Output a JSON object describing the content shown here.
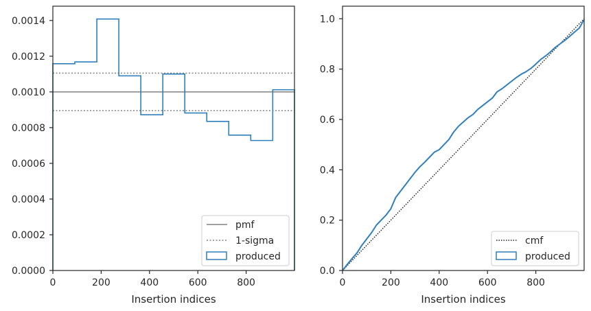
{
  "chart_data": [
    {
      "type": "step",
      "xlabel": "Insertion indices",
      "ylabel": "",
      "xlim": [
        0,
        1000
      ],
      "ylim": [
        0,
        0.00148
      ],
      "xticks": [
        0,
        200,
        400,
        600,
        800
      ],
      "xtick_labels": [
        "0",
        "200",
        "400",
        "600",
        "800"
      ],
      "yticks": [
        0,
        0.0002,
        0.0004,
        0.0006,
        0.0008,
        0.001,
        0.0012,
        0.0014
      ],
      "ytick_labels": [
        "0.0000",
        "0.0002",
        "0.0004",
        "0.0006",
        "0.0008",
        "0.0010",
        "0.0012",
        "0.0014"
      ],
      "pmf": 0.001,
      "sigma_band": [
        0.000895,
        0.001105
      ],
      "produced_bins": {
        "edges": [
          0,
          91,
          182,
          273,
          364,
          455,
          546,
          637,
          728,
          819,
          910,
          1000
        ],
        "values": [
          0.001158,
          0.001168,
          0.001408,
          0.00109,
          0.000872,
          0.0011,
          0.000882,
          0.000835,
          0.000758,
          0.000728,
          0.001012
        ]
      },
      "legend": {
        "position": "lower right",
        "entries": [
          "pmf",
          "1-sigma",
          "produced"
        ]
      },
      "colors": {
        "produced": "#2f7fbc",
        "pmf": "#808080",
        "sigma": "#808080"
      }
    },
    {
      "type": "line",
      "xlabel": "Insertion indices",
      "ylabel": "",
      "xlim": [
        0,
        1000
      ],
      "ylim": [
        0,
        1.05
      ],
      "xticks": [
        0,
        200,
        400,
        600,
        800
      ],
      "xtick_labels": [
        "0",
        "200",
        "400",
        "600",
        "800"
      ],
      "yticks": [
        0,
        0.2,
        0.4,
        0.6,
        0.8,
        1.0
      ],
      "ytick_labels": [
        "0.0",
        "0.2",
        "0.4",
        "0.6",
        "0.8",
        "1.0"
      ],
      "cmf": {
        "x": [
          0,
          1000
        ],
        "y": [
          0,
          1
        ]
      },
      "produced_cdf": {
        "x": [
          0,
          20,
          40,
          60,
          80,
          100,
          120,
          140,
          160,
          180,
          200,
          210,
          220,
          240,
          260,
          280,
          300,
          320,
          340,
          360,
          380,
          400,
          420,
          440,
          460,
          480,
          500,
          520,
          540,
          560,
          580,
          600,
          620,
          640,
          660,
          680,
          700,
          720,
          740,
          760,
          780,
          800,
          820,
          840,
          860,
          880,
          900,
          920,
          940,
          960,
          980,
          1000
        ],
        "y": [
          0,
          0.025,
          0.048,
          0.07,
          0.1,
          0.125,
          0.15,
          0.18,
          0.2,
          0.22,
          0.245,
          0.268,
          0.29,
          0.315,
          0.34,
          0.365,
          0.39,
          0.412,
          0.43,
          0.45,
          0.47,
          0.48,
          0.5,
          0.52,
          0.55,
          0.573,
          0.59,
          0.607,
          0.62,
          0.64,
          0.655,
          0.67,
          0.685,
          0.71,
          0.722,
          0.737,
          0.752,
          0.767,
          0.78,
          0.79,
          0.803,
          0.82,
          0.838,
          0.852,
          0.868,
          0.886,
          0.9,
          0.914,
          0.93,
          0.947,
          0.963,
          0.997
        ]
      },
      "legend": {
        "position": "lower right",
        "entries": [
          "cmf",
          "produced"
        ]
      },
      "colors": {
        "produced": "#2f7fbc",
        "cmf": "#222222"
      }
    }
  ]
}
